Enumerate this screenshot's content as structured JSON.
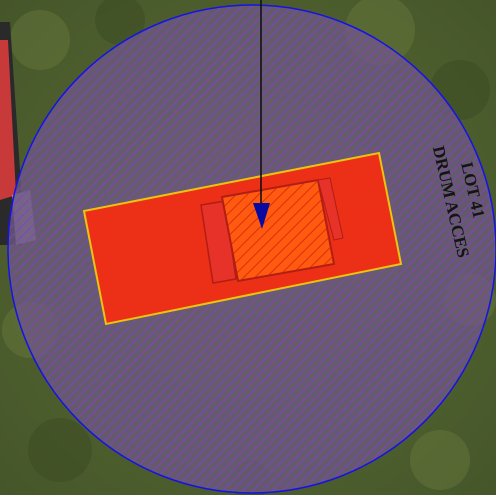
{
  "map": {
    "lot_label_line1": "LOT 41",
    "lot_label_line2": "DRUM ACCES",
    "colors": {
      "grass_base": "#4d5e2c",
      "grass_light": "#6b7a3e",
      "grass_dark": "#3a4a22",
      "circle_fill": "#6a5a7e",
      "hatch_line": "#8a3cc8",
      "circle_stroke": "#1414e6",
      "footprint_fill": "#ff2a0a",
      "footprint_stroke": "#ffd200",
      "structure_fill": "#ff5a10",
      "structure_stroke": "#c81e0a",
      "arrow_head": "#0a0aa0",
      "arrow_line": "#111111",
      "building_roof": "#c83a3a"
    }
  }
}
